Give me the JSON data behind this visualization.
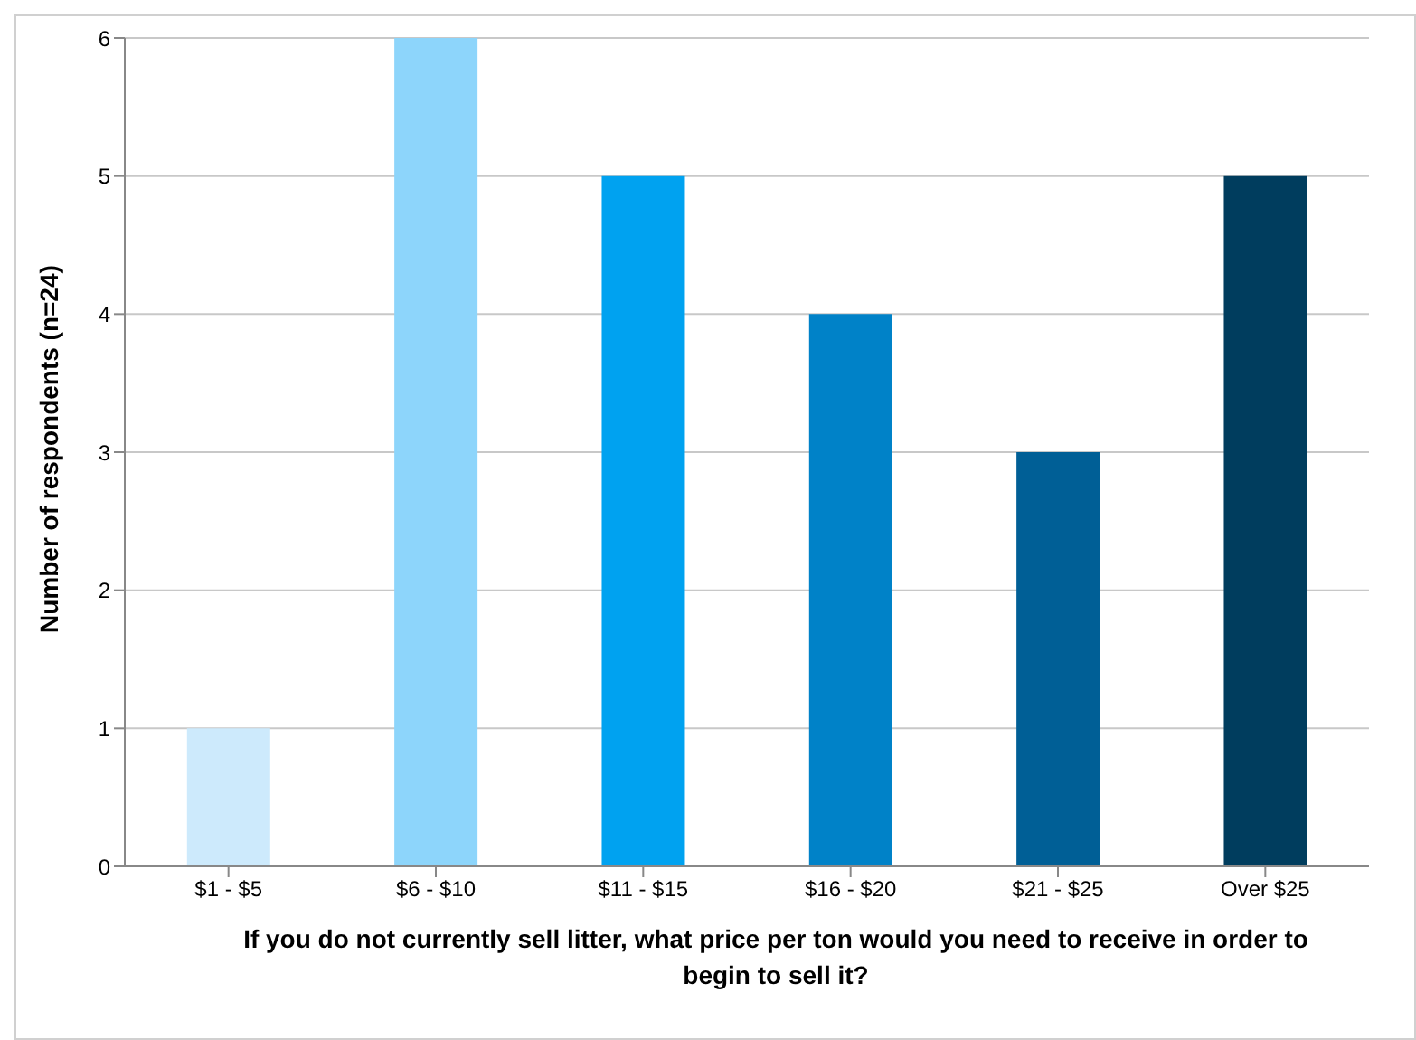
{
  "chart_data": {
    "type": "bar",
    "ylabel": "Number of respondents (n=24)",
    "xlabel": "If you do not currently sell litter, what price per ton would you need to receive in order to begin to sell it?",
    "categories": [
      "$1 - $5",
      "$6 - $10",
      "$11 - $15",
      "$16 - $20",
      "$21 - $25",
      "Over $25"
    ],
    "values": [
      1,
      6,
      5,
      4,
      3,
      5
    ],
    "colors": [
      "#cdeafc",
      "#8dd5fb",
      "#00a2f0",
      "#0082c8",
      "#005f96",
      "#003d5e"
    ],
    "ylim": [
      0,
      6
    ],
    "yticks": [
      0,
      1,
      2,
      3,
      4,
      5,
      6
    ],
    "grid": "y"
  }
}
